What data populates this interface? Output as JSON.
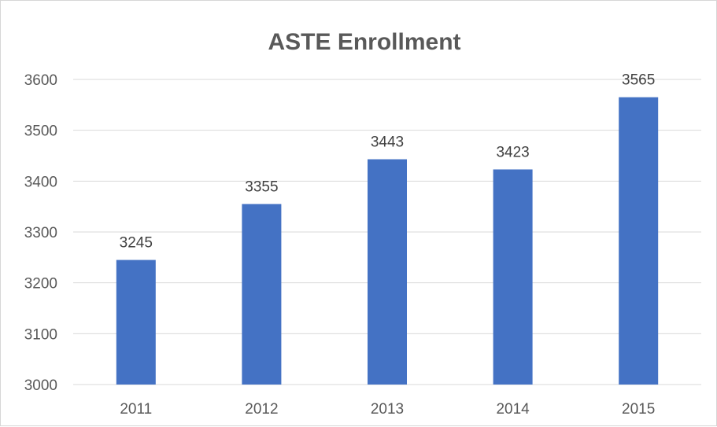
{
  "chart_data": {
    "type": "bar",
    "title": "ASTE Enrollment",
    "xlabel": "",
    "ylabel": "",
    "categories": [
      "2011",
      "2012",
      "2013",
      "2014",
      "2015"
    ],
    "values": [
      3245,
      3355,
      3443,
      3423,
      3565
    ],
    "data_labels": [
      "3245",
      "3355",
      "3443",
      "3423",
      "3565"
    ],
    "ylim": [
      3000,
      3600
    ],
    "yticks": [
      3000,
      3100,
      3200,
      3300,
      3400,
      3500,
      3600
    ],
    "ytick_labels": [
      "3000",
      "3100",
      "3200",
      "3300",
      "3400",
      "3500",
      "3600"
    ],
    "grid": true,
    "legend": "none",
    "bar_color": "#4472c4",
    "grid_color": "#d9d9d9"
  }
}
